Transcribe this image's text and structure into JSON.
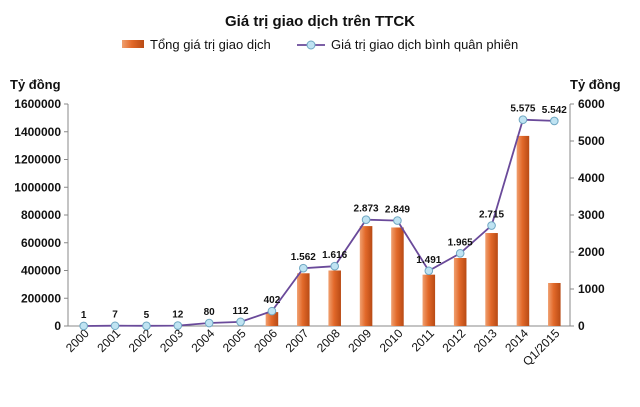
{
  "chart_data": {
    "type": "bar+line",
    "title": "Giá trị giao dịch trên TTCK",
    "categories": [
      "2000",
      "2001",
      "2002",
      "2003",
      "2004",
      "2005",
      "2006",
      "2007",
      "2008",
      "2009",
      "2010",
      "2011",
      "2012",
      "2013",
      "2014",
      "Q1/2015"
    ],
    "series": [
      {
        "name": "Tổng giá trị giao dịch",
        "type": "bar",
        "axis": "left",
        "color": "#e07030",
        "values": [
          0,
          0,
          0,
          0,
          0,
          0,
          100000,
          380000,
          400000,
          720000,
          710000,
          370000,
          490000,
          670000,
          1370000,
          310000
        ]
      },
      {
        "name": "Giá trị giao dịch bình quân phiên",
        "type": "line",
        "axis": "right",
        "color": "#6a4a9a",
        "marker_color": "#bfe3f2",
        "values": [
          1,
          7,
          5,
          12,
          80,
          112,
          402,
          1562,
          1616,
          2873,
          2849,
          1491,
          1965,
          2715,
          5575,
          5542
        ],
        "data_labels": [
          "1",
          "7",
          "5",
          "12",
          "80",
          "112",
          "402",
          "1.562",
          "1.616",
          "2.873",
          "2.849",
          "1.491",
          "1.965",
          "2.715",
          "5.575",
          "5.542"
        ]
      }
    ],
    "y_left": {
      "label": "Tỷ đồng",
      "range": [
        0,
        1600000
      ],
      "ticks": [
        0,
        200000,
        400000,
        600000,
        800000,
        1000000,
        1200000,
        1400000,
        1600000
      ],
      "tick_labels": [
        "0",
        "200000",
        "400000",
        "600000",
        "800000",
        "1000000",
        "1200000",
        "1400000",
        "1600000"
      ]
    },
    "y_right": {
      "label": "Tỷ đồng",
      "range": [
        0,
        6000
      ],
      "ticks": [
        0,
        1000,
        2000,
        3000,
        4000,
        5000,
        6000
      ],
      "tick_labels": [
        "0",
        "1000",
        "2000",
        "3000",
        "4000",
        "5000",
        "6000"
      ]
    },
    "legend": "top-center",
    "grid": false
  }
}
